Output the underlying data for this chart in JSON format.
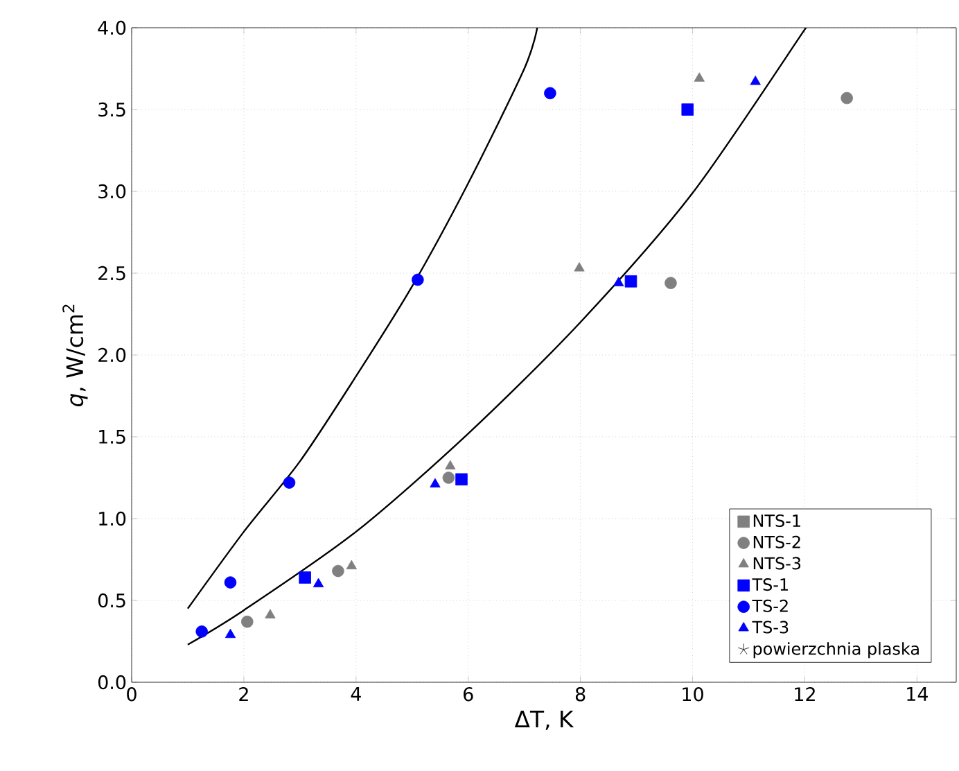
{
  "chart_data": {
    "type": "scatter",
    "xlabel": "ΔT, K",
    "ylabel": "*q*, W/cm$^{2}$",
    "xlim": [
      0,
      14.7
    ],
    "ylim": [
      0,
      4.0
    ],
    "xticks": [
      0,
      2,
      4,
      6,
      8,
      10,
      12,
      14
    ],
    "yticks": [
      {
        "value": 0,
        "label": "0.0"
      },
      0.5,
      {
        "value": 1,
        "label": "1.0"
      },
      1.5,
      {
        "value": 2,
        "label": "2.0"
      },
      2.5,
      {
        "value": 3,
        "label": "3.0"
      },
      3.5,
      {
        "value": 4,
        "label": "4.0"
      }
    ],
    "grid": true,
    "legend": "bottom right",
    "series": [
      {
        "name": "NTS-1",
        "color": "#808080",
        "marker": "square"
      },
      {
        "name": "NTS-2",
        "color": "#808080",
        "marker": "circle",
        "x": [
          2.06,
          3.68,
          5.65,
          9.61,
          12.75
        ],
        "values": [
          0.37,
          0.68,
          1.25,
          2.44,
          3.57
        ]
      },
      {
        "name": "NTS-3",
        "color": "#808080",
        "marker": "triangle",
        "x": [
          2.47,
          3.92,
          5.68,
          7.98,
          10.12
        ],
        "values": [
          0.41,
          0.71,
          1.32,
          2.53,
          3.69
        ]
      },
      {
        "name": "TS-1",
        "color": "#0000ff",
        "marker": "square",
        "x": [
          3.09,
          5.88,
          8.9,
          9.91
        ],
        "values": [
          0.64,
          1.24,
          2.45,
          3.5
        ]
      },
      {
        "name": "TS-2",
        "color": "#0000ff",
        "marker": "circle",
        "x": [
          1.25,
          1.76,
          2.81,
          5.1,
          7.46
        ],
        "values": [
          0.31,
          0.61,
          1.22,
          2.46,
          3.6
        ]
      },
      {
        "name": "TS-3",
        "color": "#0000ff",
        "marker": "triangle",
        "x": [
          1.76,
          3.33,
          5.41,
          8.68,
          11.12
        ],
        "values": [
          0.29,
          0.6,
          1.21,
          2.44,
          3.67
        ]
      },
      {
        "name": "powierzchnia plaska",
        "color": "#000000",
        "marker": "star"
      },
      {
        "type": "line",
        "color": "#000000",
        "marker": "none",
        "line_style": "solid",
        "x": [
          1.0,
          2.0,
          3.0,
          4.0,
          5.0,
          6.0,
          7.0,
          7.23
        ],
        "values": [
          0.45,
          0.92,
          1.35,
          1.87,
          2.42,
          3.05,
          3.75,
          4.0
        ]
      },
      {
        "type": "line",
        "color": "#000000",
        "marker": "none",
        "line_style": "solid",
        "x": [
          1.0,
          2.0,
          4.0,
          6.0,
          8.0,
          10.0,
          12.0,
          12.01
        ],
        "values": [
          0.23,
          0.44,
          0.92,
          1.52,
          2.2,
          2.99,
          3.99,
          4.0
        ]
      }
    ]
  }
}
